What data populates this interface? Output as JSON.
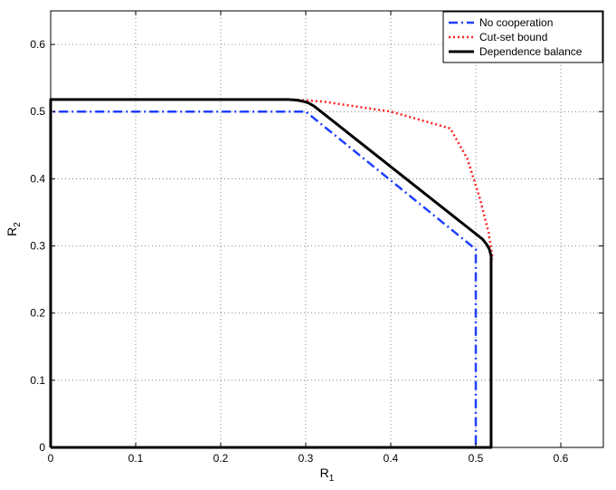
{
  "chart_data": {
    "type": "line",
    "title": "",
    "xlabel": "R",
    "xlabel_sub": "1",
    "ylabel": "R",
    "ylabel_sub": "2",
    "xlim": [
      0,
      0.65
    ],
    "ylim": [
      0,
      0.65
    ],
    "xticks": [
      0,
      0.1,
      0.2,
      0.3,
      0.4,
      0.5,
      0.6
    ],
    "yticks": [
      0,
      0.1,
      0.2,
      0.3,
      0.4,
      0.5,
      0.6
    ],
    "xtick_labels": [
      "0",
      "0.1",
      "0.2",
      "0.3",
      "0.4",
      "0.5",
      "0.6"
    ],
    "ytick_labels": [
      "0",
      "0.1",
      "0.2",
      "0.3",
      "0.4",
      "0.5",
      "0.6"
    ],
    "grid": true,
    "legend_position": "top-right",
    "series": [
      {
        "name": "No cooperation",
        "color": "#1f3fff",
        "style": "dashdot",
        "x": [
          0,
          0,
          0.3,
          0.5,
          0.5,
          0
        ],
        "y": [
          0,
          0.5,
          0.5,
          0.295,
          0,
          0
        ]
      },
      {
        "name": "Cut-set bound",
        "color": "#ff2020",
        "style": "dotted",
        "x": [
          0.285,
          0.32,
          0.4,
          0.47,
          0.49,
          0.505,
          0.515,
          0.52
        ],
        "y": [
          0.518,
          0.515,
          0.5,
          0.475,
          0.43,
          0.37,
          0.32,
          0.28
        ]
      },
      {
        "name": "Dependence balance",
        "color": "#000000",
        "style": "solid",
        "x": [
          0,
          0,
          0.28,
          0.29,
          0.298,
          0.303,
          0.31,
          0.5,
          0.508,
          0.513,
          0.516,
          0.518,
          0.518,
          0
        ],
        "y": [
          0,
          0.518,
          0.518,
          0.517,
          0.515,
          0.513,
          0.508,
          0.318,
          0.31,
          0.302,
          0.295,
          0.285,
          0,
          0
        ]
      }
    ]
  }
}
